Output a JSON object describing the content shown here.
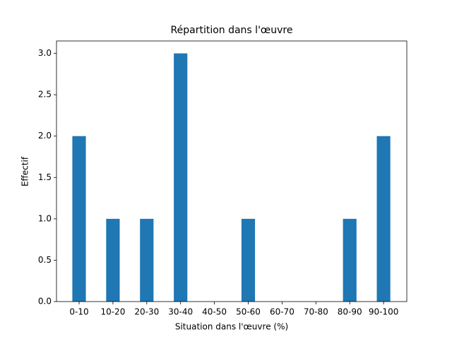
{
  "chart_data": {
    "type": "bar",
    "title": "Répartition dans l'œuvre",
    "x_label": "Situation dans l'œuvre (%)",
    "y_label": "Effectif",
    "categories": [
      "0-10",
      "10-20",
      "20-30",
      "30-40",
      "40-50",
      "50-60",
      "60-70",
      "70-80",
      "80-90",
      "90-100"
    ],
    "values": [
      2,
      1,
      1,
      3,
      0,
      1,
      0,
      0,
      1,
      2
    ],
    "color": "#1f77b4",
    "ylim": [
      0,
      3.15
    ],
    "yticks": [
      {
        "value": 0,
        "label": "0.0"
      },
      0.5,
      {
        "value": 1,
        "label": "1.0"
      },
      1.5,
      {
        "value": 2,
        "label": "2.0"
      },
      2.5,
      {
        "value": 3,
        "label": "3.0"
      }
    ]
  }
}
